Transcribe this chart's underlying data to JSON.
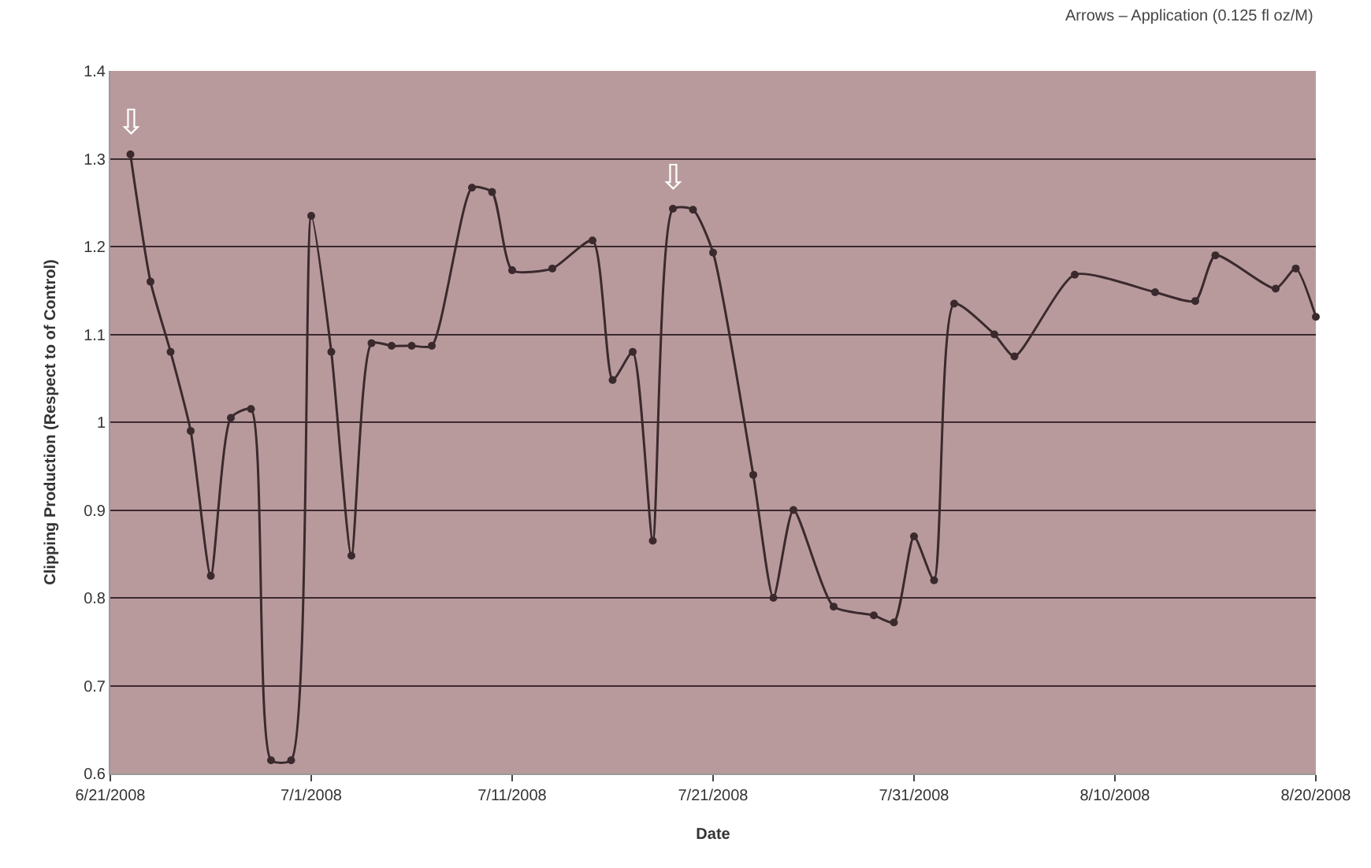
{
  "chart_data": {
    "type": "line",
    "xlabel": "Date",
    "ylabel": "Clipping Production (Respect to of Control)",
    "annotations": [
      "Arrows – Application (0.125 fl oz/M)",
      {
        "text": "⇩",
        "x": "2008-06-22",
        "y": 1.305
      },
      {
        "text": "⇩",
        "x": "2008-07-19",
        "y": 1.243
      }
    ],
    "series": [
      {
        "color": "#3a2a2e",
        "x": [
          "2008-06-22",
          "2008-06-23",
          "2008-06-24",
          "2008-06-25",
          "2008-06-26",
          "2008-06-27",
          "2008-06-28",
          "2008-06-29",
          "2008-06-30",
          "2008-07-01",
          "2008-07-02",
          "2008-07-03",
          "2008-07-04",
          "2008-07-05",
          "2008-07-06",
          "2008-07-07",
          "2008-07-09",
          "2008-07-10",
          "2008-07-11",
          "2008-07-13",
          "2008-07-15",
          "2008-07-16",
          "2008-07-17",
          "2008-07-18",
          "2008-07-19",
          "2008-07-20",
          "2008-07-21",
          "2008-07-23",
          "2008-07-24",
          "2008-07-25",
          "2008-07-27",
          "2008-07-29",
          "2008-07-30",
          "2008-07-31",
          "2008-08-01",
          "2008-08-02",
          "2008-08-04",
          "2008-08-05",
          "2008-08-08",
          "2008-08-12",
          "2008-08-14",
          "2008-08-15",
          "2008-08-18",
          "2008-08-19",
          "2008-08-20"
        ],
        "values": [
          1.305,
          1.16,
          1.08,
          0.99,
          0.825,
          1.005,
          1.015,
          0.615,
          0.615,
          1.235,
          1.08,
          0.848,
          1.09,
          1.087,
          1.087,
          1.087,
          1.267,
          1.262,
          1.173,
          1.175,
          1.207,
          1.048,
          1.08,
          0.865,
          1.243,
          1.242,
          1.193,
          0.94,
          0.8,
          0.9,
          0.79,
          0.78,
          0.772,
          0.87,
          0.82,
          1.135,
          1.1,
          1.075,
          1.168,
          1.148,
          1.138,
          1.19,
          1.152,
          1.175,
          1.12
        ]
      }
    ],
    "xlim": [
      "2008-06-21",
      "2008-08-20"
    ],
    "xticks": [
      {
        "value": "2008-06-21",
        "label": "6/21/2008"
      },
      {
        "value": "2008-07-01",
        "label": "7/1/2008"
      },
      {
        "value": "2008-07-11",
        "label": "7/11/2008"
      },
      {
        "value": "2008-07-21",
        "label": "7/21/2008"
      },
      {
        "value": "2008-07-31",
        "label": "7/31/2008"
      },
      {
        "value": "2008-08-10",
        "label": "8/10/2008"
      },
      {
        "value": "2008-08-20",
        "label": "8/20/2008"
      }
    ],
    "ylim": [
      0.6,
      1.4
    ],
    "yticks": [
      0.6,
      0.7,
      0.8,
      0.9,
      1,
      1.1,
      1.2,
      1.3,
      1.4
    ],
    "grid": "y",
    "marker": "circle",
    "line_style": "solid"
  }
}
